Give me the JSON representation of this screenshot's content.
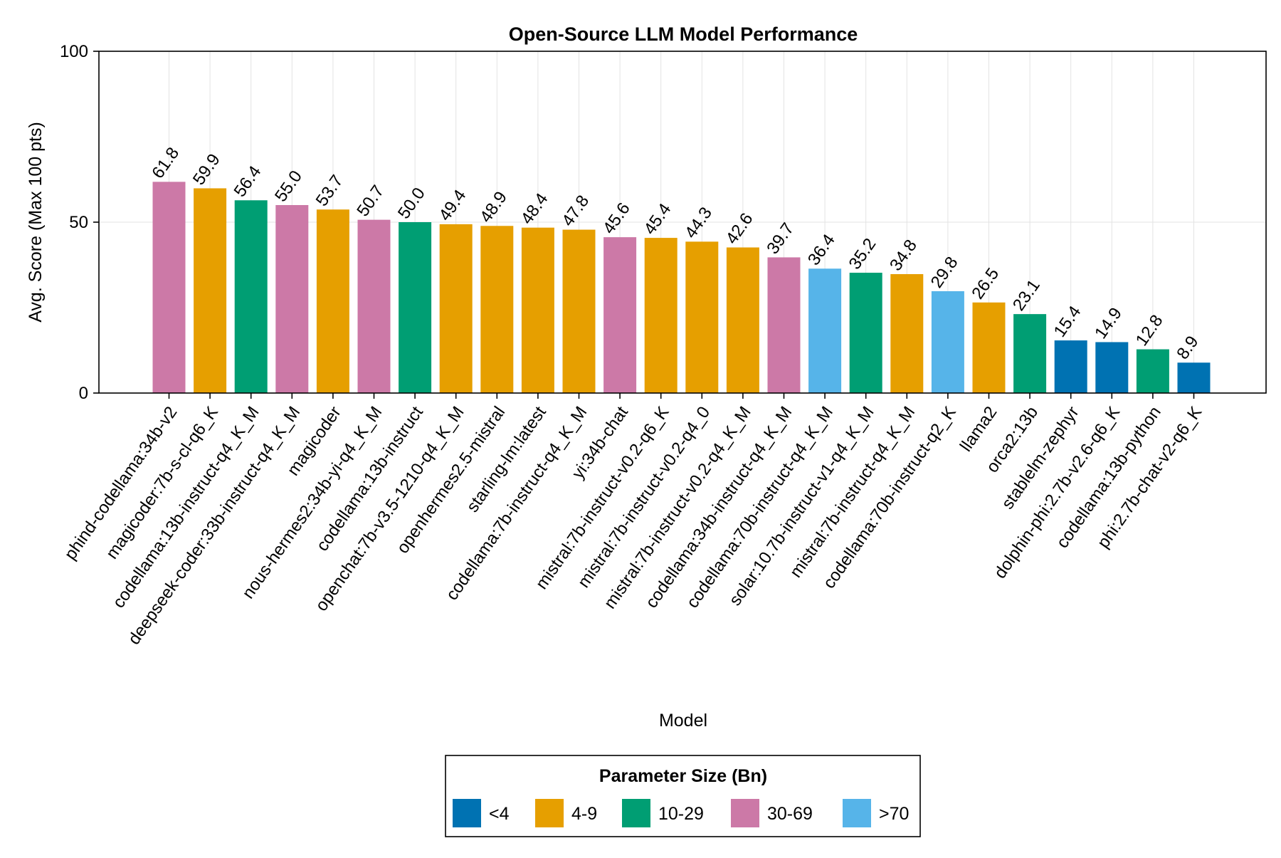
{
  "chart_data": {
    "type": "bar",
    "title": "Open-Source LLM Model Performance",
    "xlabel": "Model",
    "ylabel": "Avg. Score (Max 100 pts)",
    "ylim": [
      0,
      100
    ],
    "yticks": [
      "0",
      "50",
      "100"
    ],
    "grid": true,
    "categories": [
      "phind-codellama:34b-v2",
      "magicoder:7b-s-cl-q6_K",
      "codellama:13b-instruct-q4_K_M",
      "deepseek-coder:33b-instruct-q4_K_M",
      "magicoder",
      "nous-hermes2:34b-yi-q4_K_M",
      "codellama:13b-instruct",
      "openchat:7b-v3.5-1210-q4_K_M",
      "openhermes2.5-mistral",
      "starling-lm:latest",
      "codellama:7b-instruct-q4_K_M",
      "yi:34b-chat",
      "mistral:7b-instruct-v0.2-q6_K",
      "mistral:7b-instruct-v0.2-q4_0",
      "mistral:7b-instruct-v0.2-q4_K_M",
      "codellama:34b-instruct-q4_K_M",
      "codellama:70b-instruct-q4_K_M",
      "solar:10.7b-instruct-v1-q4_K_M",
      "mistral:7b-instruct-q4_K_M",
      "codellama:70b-instruct-q2_K",
      "llama2",
      "orca2:13b",
      "stablelm-zephyr",
      "dolphin-phi:2.7b-v2.6-q6_K",
      "codellama:13b-python",
      "phi:2.7b-chat-v2-q6_K"
    ],
    "values": [
      61.8,
      59.9,
      56.4,
      55.0,
      53.7,
      50.7,
      50.0,
      49.4,
      48.9,
      48.4,
      47.8,
      45.6,
      45.4,
      44.3,
      42.6,
      39.7,
      36.4,
      35.2,
      34.8,
      29.8,
      26.5,
      23.1,
      15.4,
      14.9,
      12.8,
      8.9
    ],
    "value_labels": [
      "61.8",
      "59.9",
      "56.4",
      "55.0",
      "53.7",
      "50.7",
      "50.0",
      "49.4",
      "48.9",
      "48.4",
      "47.8",
      "45.6",
      "45.4",
      "44.3",
      "42.6",
      "39.7",
      "36.4",
      "35.2",
      "34.8",
      "29.8",
      "26.5",
      "23.1",
      "15.4",
      "14.9",
      "12.8",
      "8.9"
    ],
    "groups": [
      "30-69",
      "4-9",
      "10-29",
      "30-69",
      "4-9",
      "30-69",
      "10-29",
      "4-9",
      "4-9",
      "4-9",
      "4-9",
      "30-69",
      "4-9",
      "4-9",
      "4-9",
      "30-69",
      ">70",
      "10-29",
      "4-9",
      ">70",
      "4-9",
      "10-29",
      "<4",
      "<4",
      "10-29",
      "<4"
    ],
    "legend": {
      "title": "Parameter Size (Bn)",
      "placement": "bottom-center",
      "entries": [
        {
          "label": "<4",
          "color": "#0072b2"
        },
        {
          "label": "4-9",
          "color": "#e69f00"
        },
        {
          "label": "10-29",
          "color": "#009e73"
        },
        {
          "label": "30-69",
          "color": "#cc79a7"
        },
        {
          "label": ">70",
          "color": "#56b4e9"
        }
      ]
    }
  }
}
